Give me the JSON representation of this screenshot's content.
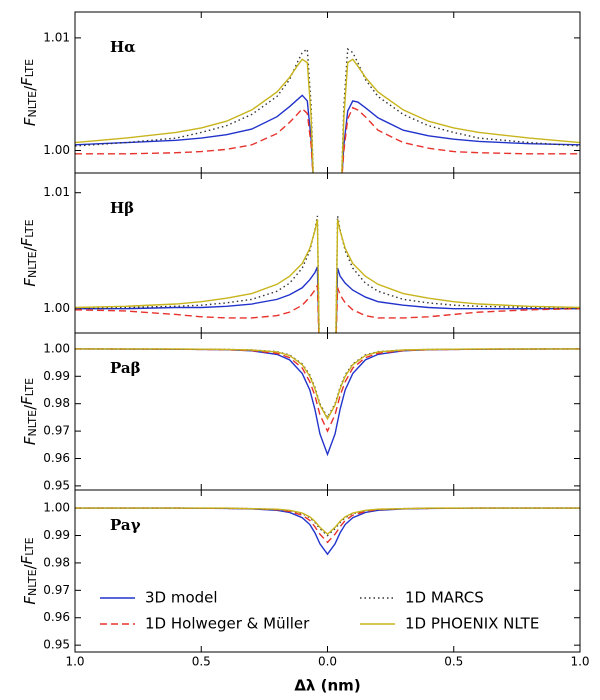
{
  "chart_data": [
    {
      "type": "line",
      "annotation": "Hα",
      "ylabel": [
        "F",
        "NLTE",
        "/",
        "F",
        "LTE"
      ],
      "xlim": [
        -1,
        1
      ],
      "xticks": [
        {
          "value": -1,
          "label": "1.0"
        },
        {
          "value": -0.5,
          "label": "0.5"
        },
        {
          "value": 0,
          "label": "0.0"
        },
        0.5,
        {
          "value": 1,
          "label": "1.0"
        }
      ],
      "ylim": [
        0.998,
        1.0123
      ],
      "yticks": [
        {
          "value": 1,
          "label": "1.00"
        },
        1.01
      ],
      "x": [
        -1,
        -0.8,
        -0.6,
        -0.5,
        -0.4,
        -0.3,
        -0.2,
        -0.15,
        -0.12,
        -0.1,
        -0.08,
        -0.065,
        -0.055,
        0,
        0.055,
        0.065,
        0.08,
        0.1,
        0.12,
        0.15,
        0.2,
        0.3,
        0.4,
        0.5,
        0.6,
        0.8,
        1
      ],
      "series": [
        {
          "color": "#2233cc",
          "dash": "solid",
          "values": [
            1.0005,
            1.0007,
            1.0009,
            1.0011,
            1.0014,
            1.0019,
            1.003,
            1.0039,
            1.0045,
            1.0049,
            1.0044,
            1.001,
            0.997,
            null,
            0.997,
            1.0005,
            1.0035,
            1.0044,
            1.0043,
            1.0038,
            1.0029,
            1.0018,
            1.0013,
            1.001,
            1.0008,
            1.0006,
            1.0005
          ]
        },
        {
          "color": "#e8322c",
          "dash": "dashed",
          "values": [
            0.9997,
            0.9997,
            0.9998,
            0.9999,
            1.0001,
            1.0005,
            1.0015,
            1.0025,
            1.0032,
            1.0037,
            1.0033,
            1.0005,
            0.997,
            null,
            0.997,
            1.0,
            1.0028,
            1.0038,
            1.0036,
            1.003,
            1.0018,
            1.0007,
            1.0002,
            0.9999,
            0.9998,
            0.9997,
            0.9997
          ]
        },
        {
          "color": "#333333",
          "dash": "dotted",
          "values": [
            1.0004,
            1.0007,
            1.0011,
            1.0016,
            1.0022,
            1.0032,
            1.0048,
            1.0063,
            1.0078,
            1.0087,
            1.009,
            1.004,
            0.997,
            null,
            0.997,
            1.004,
            1.009,
            1.0087,
            1.0078,
            1.0063,
            1.0048,
            1.0032,
            1.0022,
            1.0016,
            1.0011,
            1.0007,
            1.0004
          ]
        },
        {
          "color": "#c8b41c",
          "dash": "solid",
          "values": [
            1.0007,
            1.0011,
            1.0016,
            1.002,
            1.0026,
            1.0036,
            1.0052,
            1.0065,
            1.0075,
            1.0081,
            1.0078,
            1.003,
            0.997,
            null,
            0.997,
            1.003,
            1.0078,
            1.0081,
            1.0075,
            1.0065,
            1.0052,
            1.0036,
            1.0026,
            1.002,
            1.0016,
            1.0011,
            1.0007
          ]
        }
      ]
    },
    {
      "type": "line",
      "annotation": "Hβ",
      "ylabel": [
        "F",
        "NLTE",
        "/",
        "F",
        "LTE"
      ],
      "xlim": [
        -1,
        1
      ],
      "xticks": [
        {
          "value": -1,
          "label": "1.0"
        },
        {
          "value": -0.5,
          "label": "0.5"
        },
        {
          "value": 0,
          "label": "0.0"
        },
        0.5,
        {
          "value": 1,
          "label": "1.0"
        }
      ],
      "ylim": [
        0.9979,
        1.0117
      ],
      "yticks": [
        {
          "value": 1,
          "label": "1.00"
        },
        1.01
      ],
      "x": [
        -1,
        -0.8,
        -0.6,
        -0.5,
        -0.4,
        -0.3,
        -0.2,
        -0.15,
        -0.1,
        -0.07,
        -0.05,
        -0.04,
        -0.032,
        0,
        0.032,
        0.04,
        0.05,
        0.07,
        0.1,
        0.15,
        0.2,
        0.3,
        0.4,
        0.5,
        0.6,
        0.8,
        1
      ],
      "series": [
        {
          "color": "#2233cc",
          "dash": "solid",
          "values": [
            1.0,
            1.0,
            1.0001,
            1.0001,
            1.0002,
            1.0004,
            1.0008,
            1.0012,
            1.0018,
            1.0025,
            1.0031,
            1.0036,
            0.996,
            null,
            0.996,
            1.0035,
            1.0028,
            1.0022,
            1.0016,
            1.001,
            1.0006,
            1.0003,
            1.0001,
            1.0,
            1.0,
            1.0,
            1.0
          ]
        },
        {
          "color": "#e8322c",
          "dash": "dashed",
          "values": [
            0.9999,
            0.9998,
            0.9995,
            0.9993,
            0.9992,
            0.9992,
            0.9994,
            0.9997,
            1.0003,
            1.001,
            1.0016,
            1.002,
            0.996,
            null,
            0.996,
            1.0018,
            1.0012,
            1.0005,
            0.9999,
            0.9994,
            0.9992,
            0.9992,
            0.9993,
            0.9995,
            0.9997,
            0.9999,
            1.0
          ]
        },
        {
          "color": "#333333",
          "dash": "dotted",
          "values": [
            1.0,
            1.0001,
            1.0002,
            1.0003,
            1.0005,
            1.0008,
            1.0015,
            1.0022,
            1.0035,
            1.005,
            1.0068,
            1.008,
            0.996,
            null,
            0.996,
            1.008,
            1.0068,
            1.005,
            1.0035,
            1.0022,
            1.0015,
            1.0008,
            1.0005,
            1.0003,
            1.0002,
            1.0001,
            1.0
          ]
        },
        {
          "color": "#c8b41c",
          "dash": "solid",
          "values": [
            1.0001,
            1.0002,
            1.0004,
            1.0006,
            1.0009,
            1.0013,
            1.0021,
            1.0028,
            1.0039,
            1.0052,
            1.0067,
            1.0077,
            0.996,
            null,
            0.996,
            1.0077,
            1.0067,
            1.0052,
            1.0039,
            1.0028,
            1.0021,
            1.0013,
            1.0009,
            1.0006,
            1.0004,
            1.0002,
            1.0001
          ]
        }
      ]
    },
    {
      "type": "line",
      "annotation": "Paβ",
      "ylabel": [
        "F",
        "NLTE",
        "/",
        "F",
        "LTE"
      ],
      "xlim": [
        -1,
        1
      ],
      "xticks": [
        {
          "value": -1,
          "label": "1.0"
        },
        {
          "value": -0.5,
          "label": "0.5"
        },
        {
          "value": 0,
          "label": "0.0"
        },
        0.5,
        {
          "value": 1,
          "label": "1.0"
        }
      ],
      "ylim": [
        0.9485,
        1.0058
      ],
      "yticks": [
        {
          "value": 1,
          "label": "1.00"
        },
        0.99,
        0.98,
        0.97,
        0.96,
        0.95
      ],
      "x": [
        -1,
        -0.6,
        -0.4,
        -0.3,
        -0.2,
        -0.15,
        -0.1,
        -0.07,
        -0.05,
        -0.03,
        0,
        0.03,
        0.05,
        0.07,
        0.1,
        0.15,
        0.2,
        0.3,
        0.4,
        0.6,
        1
      ],
      "series": [
        {
          "color": "#2233cc",
          "dash": "solid",
          "values": [
            1,
            0.9999,
            0.9997,
            0.9993,
            0.998,
            0.996,
            0.991,
            0.985,
            0.978,
            0.969,
            0.9615,
            0.969,
            0.978,
            0.985,
            0.991,
            0.996,
            0.998,
            0.9993,
            0.9997,
            0.9999,
            1
          ]
        },
        {
          "color": "#e8322c",
          "dash": "dashed",
          "values": [
            1,
            0.9999,
            0.9997,
            0.9994,
            0.9984,
            0.9968,
            0.993,
            0.988,
            0.983,
            0.976,
            0.97,
            0.976,
            0.983,
            0.988,
            0.993,
            0.9968,
            0.9984,
            0.9994,
            0.9997,
            0.9999,
            1
          ]
        },
        {
          "color": "#333333",
          "dash": "dotted",
          "values": [
            1,
            0.9999,
            0.9998,
            0.9996,
            0.999,
            0.9978,
            0.9945,
            0.9905,
            0.986,
            0.98,
            0.975,
            0.98,
            0.986,
            0.9905,
            0.9945,
            0.9978,
            0.999,
            0.9996,
            0.9998,
            0.9999,
            1
          ]
        },
        {
          "color": "#c8b41c",
          "dash": "solid",
          "values": [
            1,
            1,
            0.9998,
            0.9996,
            0.9989,
            0.9976,
            0.9942,
            0.99,
            0.9855,
            0.9795,
            0.9745,
            0.9795,
            0.9855,
            0.99,
            0.9942,
            0.9976,
            0.9989,
            0.9996,
            0.9998,
            1,
            1
          ]
        }
      ]
    },
    {
      "type": "line",
      "annotation": "Paγ",
      "ylabel": [
        "F",
        "NLTE",
        "/",
        "F",
        "LTE"
      ],
      "xlabel": "Δλ (nm)",
      "xlim": [
        -1,
        1
      ],
      "xticks": [
        {
          "value": -1,
          "label": "1.0"
        },
        {
          "value": -0.5,
          "label": "0.5"
        },
        {
          "value": 0,
          "label": "0.0"
        },
        0.5,
        {
          "value": 1,
          "label": "1.0"
        }
      ],
      "ylim": [
        0.9475,
        1.0066
      ],
      "yticks": [
        {
          "value": 1,
          "label": "1.00"
        },
        0.99,
        0.98,
        0.97,
        0.96,
        0.95
      ],
      "x": [
        -1,
        -0.6,
        -0.4,
        -0.3,
        -0.2,
        -0.15,
        -0.1,
        -0.07,
        -0.05,
        -0.03,
        0,
        0.03,
        0.05,
        0.07,
        0.1,
        0.15,
        0.2,
        0.3,
        0.4,
        0.6,
        1
      ],
      "series": [
        {
          "name": "3D model",
          "color": "#2233cc",
          "dash": "solid",
          "values": [
            1,
            1,
            0.9999,
            0.9997,
            0.9992,
            0.9984,
            0.9965,
            0.994,
            0.991,
            0.987,
            0.9832,
            0.987,
            0.991,
            0.994,
            0.9965,
            0.9984,
            0.9992,
            0.9997,
            0.9999,
            1,
            1
          ]
        },
        {
          "name": "1D Holweger & Müller",
          "color": "#e8322c",
          "dash": "dashed",
          "values": [
            1,
            1,
            0.9999,
            0.9998,
            0.9994,
            0.9988,
            0.9974,
            0.9955,
            0.9932,
            0.9905,
            0.9875,
            0.9905,
            0.9932,
            0.9955,
            0.9974,
            0.9988,
            0.9994,
            0.9998,
            0.9999,
            1,
            1
          ]
        },
        {
          "name": "1D MARCS",
          "color": "#333333",
          "dash": "dotted",
          "values": [
            1,
            1,
            0.9999,
            0.9998,
            0.9995,
            0.9991,
            0.998,
            0.9965,
            0.9948,
            0.9925,
            0.99,
            0.9925,
            0.9948,
            0.9965,
            0.998,
            0.9991,
            0.9995,
            0.9998,
            0.9999,
            1,
            1
          ]
        },
        {
          "name": "1D PHOENIX NLTE",
          "color": "#c8b41c",
          "dash": "solid",
          "values": [
            1,
            1,
            1,
            0.9998,
            0.9996,
            0.9992,
            0.9982,
            0.9968,
            0.9952,
            0.993,
            0.9905,
            0.993,
            0.9952,
            0.9968,
            0.9982,
            0.9992,
            0.9996,
            0.9998,
            1,
            1,
            1
          ]
        }
      ]
    }
  ]
}
